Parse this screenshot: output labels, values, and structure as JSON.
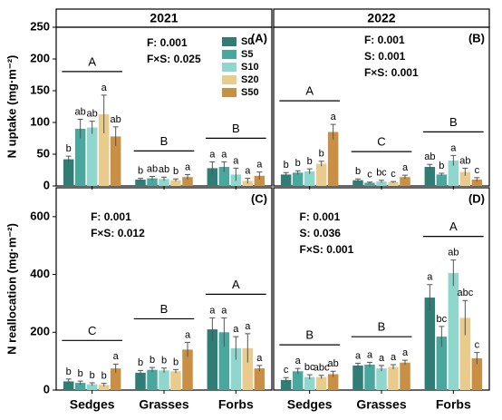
{
  "chart_data": [
    {
      "type": "bar",
      "title": "2021",
      "panel": "(A)",
      "ylabel": "N uptake (mg·m⁻²)",
      "ylim": [
        0,
        250
      ],
      "yticks": [
        0,
        50,
        100,
        150,
        200,
        250
      ],
      "group_letters": [
        "A",
        "B",
        "B"
      ],
      "stats": [
        "F: 0.001",
        "F×S: 0.025"
      ],
      "series": [
        {
          "name": "S0",
          "color": "#2f7d74",
          "values": [
            42,
            10,
            28
          ],
          "errors": [
            5,
            2,
            10
          ],
          "letters": [
            "b",
            "b",
            "a"
          ]
        },
        {
          "name": "S5",
          "color": "#4aa79d",
          "values": [
            90,
            12,
            30
          ],
          "errors": [
            15,
            3,
            8
          ],
          "letters": [
            "ab",
            "ab",
            "a"
          ]
        },
        {
          "name": "S10",
          "color": "#8fd6cd",
          "values": [
            92,
            11,
            18
          ],
          "errors": [
            10,
            3,
            10
          ],
          "letters": [
            "ab",
            "ab",
            "a"
          ]
        },
        {
          "name": "S20",
          "color": "#e9cb8c",
          "values": [
            113,
            9,
            8
          ],
          "errors": [
            30,
            2,
            4
          ],
          "letters": [
            "a",
            "b",
            "a"
          ]
        },
        {
          "name": "S50",
          "color": "#c98f45",
          "values": [
            78,
            14,
            16
          ],
          "errors": [
            15,
            4,
            6
          ],
          "letters": [
            "ab",
            "a",
            "a"
          ]
        }
      ]
    },
    {
      "type": "bar",
      "title": "2022",
      "panel": "(B)",
      "ylim": [
        0,
        250
      ],
      "group_letters": [
        "A",
        "C",
        "B"
      ],
      "stats": [
        "F: 0.001",
        "S: 0.001",
        "F×S: 0.001"
      ],
      "series": [
        {
          "color": "#2f7d74",
          "values": [
            18,
            9,
            30
          ],
          "errors": [
            3,
            2,
            4
          ],
          "letters": [
            "b",
            "b",
            "ab"
          ]
        },
        {
          "color": "#4aa79d",
          "values": [
            21,
            5,
            18
          ],
          "errors": [
            3,
            1,
            2
          ],
          "letters": [
            "b",
            "c",
            "b"
          ]
        },
        {
          "color": "#8fd6cd",
          "values": [
            23,
            7,
            40
          ],
          "errors": [
            4,
            2,
            8
          ],
          "letters": [
            "b",
            "bc",
            "a"
          ]
        },
        {
          "color": "#e9cb8c",
          "values": [
            35,
            6,
            22
          ],
          "errors": [
            4,
            1,
            6
          ],
          "letters": [
            "b",
            "c",
            "ab"
          ]
        },
        {
          "color": "#c98f45",
          "values": [
            85,
            14,
            10
          ],
          "errors": [
            12,
            3,
            3
          ],
          "letters": [
            "a",
            "a",
            "c"
          ]
        }
      ]
    },
    {
      "type": "bar",
      "panel": "(C)",
      "ylabel": "N reallocation (mg·m⁻²)",
      "ylim": [
        0,
        700
      ],
      "yticks": [
        0,
        200,
        400,
        600
      ],
      "categories": [
        "Sedges",
        "Grasses",
        "Forbs"
      ],
      "group_letters": [
        "C",
        "B",
        "A"
      ],
      "stats": [
        "F: 0.001",
        "F×S: 0.012"
      ],
      "series": [
        {
          "color": "#2f7d74",
          "values": [
            30,
            60,
            210
          ],
          "errors": [
            8,
            8,
            40
          ],
          "letters": [
            "b",
            "b",
            "a"
          ]
        },
        {
          "color": "#4aa79d",
          "values": [
            25,
            70,
            200
          ],
          "errors": [
            6,
            8,
            50
          ],
          "letters": [
            "b",
            "b",
            "a"
          ]
        },
        {
          "color": "#8fd6cd",
          "values": [
            20,
            68,
            145
          ],
          "errors": [
            5,
            8,
            40
          ],
          "letters": [
            "b",
            "b",
            "a"
          ]
        },
        {
          "color": "#e9cb8c",
          "values": [
            18,
            65,
            145
          ],
          "errors": [
            5,
            6,
            50
          ],
          "letters": [
            "b",
            "b",
            "a"
          ]
        },
        {
          "color": "#c98f45",
          "values": [
            75,
            140,
            75
          ],
          "errors": [
            15,
            25,
            10
          ],
          "letters": [
            "a",
            "a",
            "a"
          ]
        }
      ]
    },
    {
      "type": "bar",
      "panel": "(D)",
      "ylim": [
        0,
        700
      ],
      "categories": [
        "Sedges",
        "Grasses",
        "Forbs"
      ],
      "group_letters": [
        "B",
        "B",
        "A"
      ],
      "stats": [
        "F: 0.001",
        "S: 0.036",
        "F×S: 0.001"
      ],
      "series": [
        {
          "color": "#2f7d74",
          "values": [
            35,
            85,
            320
          ],
          "errors": [
            8,
            8,
            45
          ],
          "letters": [
            "c",
            "a",
            "a"
          ]
        },
        {
          "color": "#4aa79d",
          "values": [
            65,
            88,
            185
          ],
          "errors": [
            10,
            8,
            35
          ],
          "letters": [
            "a",
            "a",
            "bc"
          ]
        },
        {
          "color": "#8fd6cd",
          "values": [
            45,
            75,
            405
          ],
          "errors": [
            8,
            10,
            45
          ],
          "letters": [
            "bc",
            "a",
            "ab"
          ]
        },
        {
          "color": "#e9cb8c",
          "values": [
            45,
            80,
            250
          ],
          "errors": [
            6,
            8,
            60
          ],
          "letters": [
            "abc",
            "a",
            "abc"
          ]
        },
        {
          "color": "#c98f45",
          "values": [
            55,
            95,
            110
          ],
          "errors": [
            10,
            8,
            20
          ],
          "letters": [
            "ab",
            "a",
            "c"
          ]
        }
      ]
    }
  ]
}
